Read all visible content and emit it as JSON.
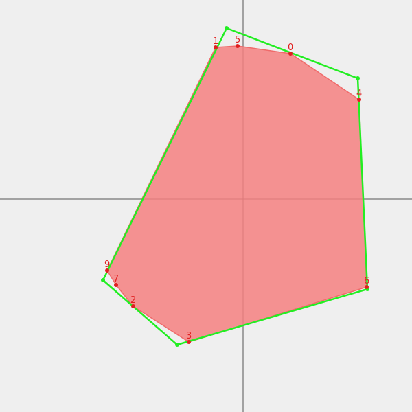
{
  "colors": {
    "background": "#efefef",
    "axis": "#555555",
    "polygon_fill": "#f48080",
    "polygon_stroke": "#f06a6a",
    "hull_stroke": "#22ee22",
    "hull_vertex": "#22ee22",
    "point": "#e02020",
    "label": "#e02020"
  },
  "chart_data": {
    "type": "scatter",
    "xlim": [
      -354,
      246
    ],
    "ylim": [
      -310,
      290
    ],
    "axes_origin": [
      0,
      0
    ],
    "points": [
      {
        "label": "0",
        "x": 69,
        "y": 212
      },
      {
        "label": "1",
        "x": -40,
        "y": 221
      },
      {
        "label": "2",
        "x": -160,
        "y": -156
      },
      {
        "label": "3",
        "x": -79,
        "y": -208
      },
      {
        "label": "4",
        "x": 169,
        "y": 145
      },
      {
        "label": "5",
        "x": -8,
        "y": 223
      },
      {
        "label": "6",
        "x": 180,
        "y": -128
      },
      {
        "label": "7",
        "x": -185,
        "y": -125
      },
      {
        "label": "9",
        "x": -198,
        "y": -104
      }
    ],
    "polygon": [
      {
        "x": -8,
        "y": 223
      },
      {
        "x": 69,
        "y": 212
      },
      {
        "x": 169,
        "y": 145
      },
      {
        "x": 180,
        "y": -128
      },
      {
        "x": -79,
        "y": -208
      },
      {
        "x": -160,
        "y": -156
      },
      {
        "x": -185,
        "y": -125
      },
      {
        "x": -198,
        "y": -104
      },
      {
        "x": -40,
        "y": 221
      }
    ],
    "hull": [
      {
        "x": -24,
        "y": 249
      },
      {
        "x": 167,
        "y": 176
      },
      {
        "x": 181,
        "y": -131
      },
      {
        "x": -96,
        "y": -212
      },
      {
        "x": -204,
        "y": -118
      }
    ]
  }
}
